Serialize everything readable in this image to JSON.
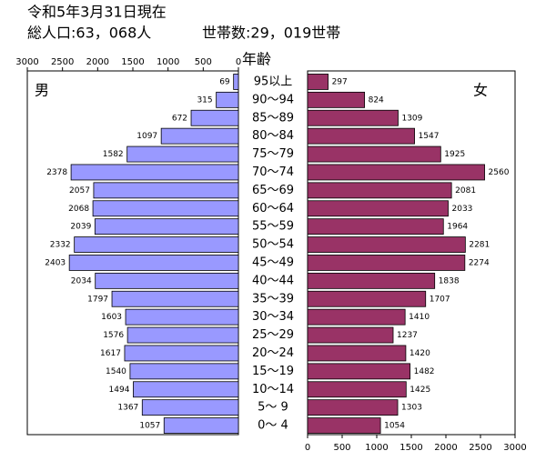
{
  "chart_data": {
    "type": "pyramid",
    "title": "令和5年3月31日現在",
    "subtitle": [
      "総人口:63，068人",
      "世帯数:29，019世帯"
    ],
    "ylabel": "年齢",
    "categories": [
      "95以上",
      "90～94",
      "85～89",
      "80～84",
      "75～79",
      "70～74",
      "65～69",
      "60～64",
      "55～59",
      "50～54",
      "45～49",
      "40～44",
      "35～39",
      "30～34",
      "25～29",
      "20～24",
      "15～19",
      "10～14",
      "5～ 9",
      "0～ 4"
    ],
    "series": [
      {
        "name": "男",
        "color": "#9999ff",
        "values": [
          69,
          315,
          672,
          1097,
          1582,
          2378,
          2057,
          2068,
          2039,
          2332,
          2403,
          2034,
          1797,
          1603,
          1576,
          1617,
          1540,
          1494,
          1367,
          1057
        ]
      },
      {
        "name": "女",
        "color": "#993366",
        "values": [
          297,
          824,
          1309,
          1547,
          1925,
          2560,
          2081,
          2033,
          1964,
          2281,
          2274,
          1838,
          1707,
          1410,
          1237,
          1420,
          1482,
          1425,
          1303,
          1054
        ]
      }
    ],
    "xlim": [
      0,
      3000
    ],
    "xticks": [
      0,
      500,
      1000,
      1500,
      2000,
      2500,
      3000
    ]
  }
}
